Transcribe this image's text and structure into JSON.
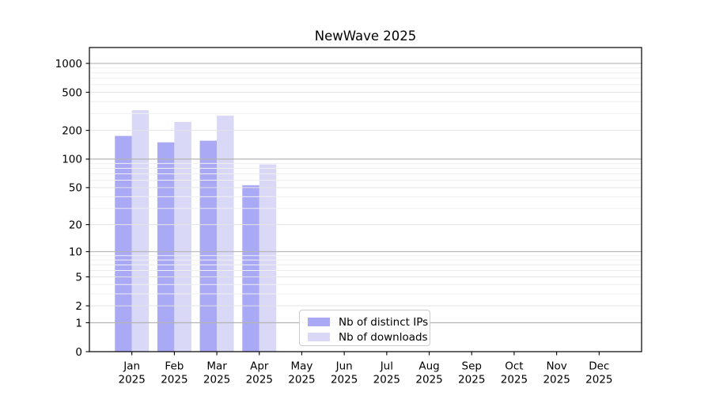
{
  "figure": {
    "background": "#ffffff"
  },
  "chart_data": {
    "type": "bar",
    "title": "NewWave 2025",
    "categories": [
      "Jan 2025",
      "Feb 2025",
      "Mar 2025",
      "Apr 2025",
      "May 2025",
      "Jun 2025",
      "Jul 2025",
      "Aug 2025",
      "Sep 2025",
      "Oct 2025",
      "Nov 2025",
      "Dec 2025"
    ],
    "series": [
      {
        "key": "distinct_ips",
        "name": "Nb of distinct IPs",
        "color": "#a9a9f5",
        "values": [
          175,
          150,
          156,
          53,
          0,
          0,
          0,
          0,
          0,
          0,
          0,
          0
        ]
      },
      {
        "key": "downloads",
        "name": "Nb of downloads",
        "color": "#d9d9f7",
        "values": [
          325,
          245,
          285,
          88,
          0,
          0,
          0,
          0,
          0,
          0,
          0,
          0
        ]
      }
    ],
    "yscale": "log1p",
    "yticks": [
      0,
      1,
      2,
      5,
      10,
      20,
      50,
      100,
      200,
      500,
      1000
    ],
    "ylim": [
      0,
      1470
    ],
    "xlabel": "",
    "ylabel": "",
    "grid": true,
    "legend_position": "lower center"
  },
  "colors": {
    "grid_major": "#b4b4b4",
    "grid_mid": "#e3e3e3",
    "grid_minor": "#efefef",
    "spine": "#000000",
    "tick": "#000000",
    "legend_border": "#cccccc",
    "text": "#000000"
  }
}
